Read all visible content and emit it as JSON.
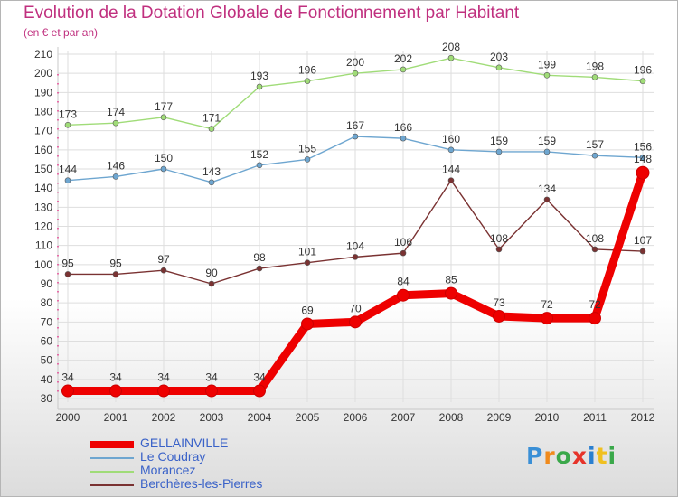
{
  "title": "Evolution de la Dotation Globale de Fonctionnement par Habitant",
  "subtitle": "(en € et par an)",
  "logo": {
    "text": "Proxiti",
    "letter_colors": [
      "#3a8fd6",
      "#f08a1c",
      "#3aa84a",
      "#e6332a",
      "#2a7fd0",
      "#f0c020",
      "#3aa84a"
    ]
  },
  "chart_data": {
    "type": "line",
    "categories": [
      "2000",
      "2001",
      "2002",
      "2003",
      "2004",
      "2005",
      "2006",
      "2007",
      "2008",
      "2009",
      "2010",
      "2011",
      "2012"
    ],
    "ylim": [
      30,
      210
    ],
    "y_ticks": [
      30,
      40,
      50,
      60,
      70,
      80,
      90,
      100,
      110,
      120,
      130,
      140,
      150,
      160,
      170,
      180,
      190,
      200,
      210
    ],
    "grid": true,
    "legend_position": "bottom-left",
    "series": [
      {
        "name": "GELLAINVILLE",
        "color": "#ee0000",
        "emphasis": true,
        "values": [
          34,
          34,
          34,
          34,
          34,
          69,
          70,
          84,
          85,
          73,
          72,
          72,
          148
        ]
      },
      {
        "name": "Le Coudray",
        "color": "#6ea6d0",
        "values": [
          144,
          146,
          150,
          143,
          152,
          155,
          167,
          166,
          160,
          159,
          159,
          157,
          156
        ]
      },
      {
        "name": "Morancez",
        "color": "#a0dc78",
        "values": [
          173,
          174,
          177,
          171,
          193,
          196,
          200,
          202,
          208,
          203,
          199,
          198,
          196
        ]
      },
      {
        "name": "Berchères-les-Pierres",
        "color": "#7a3232",
        "values": [
          95,
          95,
          97,
          90,
          98,
          101,
          104,
          106,
          144,
          108,
          134,
          108,
          107
        ]
      }
    ]
  }
}
